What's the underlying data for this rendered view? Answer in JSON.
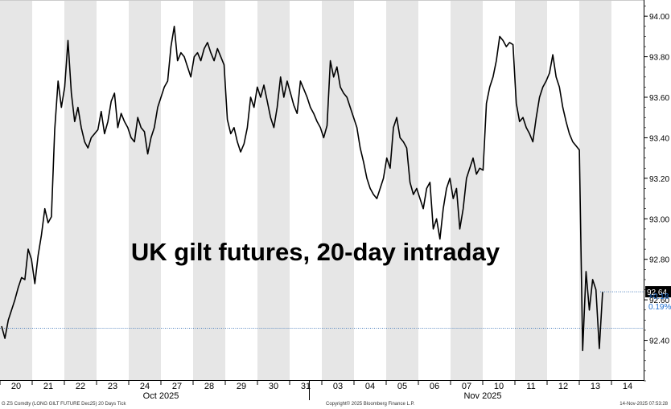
{
  "chart_data": {
    "type": "line",
    "title": "UK gilt futures, 20-day intraday",
    "series": [
      {
        "values": [
          92.47,
          92.41,
          92.5,
          92.55,
          92.6,
          92.66,
          92.71,
          92.7,
          92.85,
          92.8,
          92.68,
          92.82,
          92.92,
          93.05,
          92.98,
          93.01,
          93.44,
          93.68,
          93.55,
          93.65,
          93.88,
          93.62,
          93.48,
          93.55,
          93.45,
          93.38,
          93.35,
          93.4,
          93.42,
          93.44,
          93.53,
          93.42,
          93.48,
          93.58,
          93.62,
          93.45,
          93.52,
          93.48,
          93.45,
          93.4,
          93.38,
          93.5,
          93.45,
          93.43,
          93.32,
          93.4,
          93.45,
          93.55,
          93.6,
          93.65,
          93.68,
          93.85,
          93.95,
          93.78,
          93.82,
          93.8,
          93.75,
          93.7,
          93.8,
          93.82,
          93.78,
          93.84,
          93.87,
          93.82,
          93.78,
          93.84,
          93.8,
          93.76,
          93.49,
          93.42,
          93.45,
          93.38,
          93.33,
          93.37,
          93.45,
          93.6,
          93.55,
          93.65,
          93.6,
          93.66,
          93.58,
          93.5,
          93.45,
          93.55,
          93.7,
          93.6,
          93.68,
          93.62,
          93.56,
          93.52,
          93.68,
          93.64,
          93.6,
          93.55,
          93.52,
          93.48,
          93.45,
          93.4,
          93.46,
          93.78,
          93.7,
          93.75,
          93.65,
          93.62,
          93.6,
          93.55,
          93.5,
          93.45,
          93.35,
          93.28,
          93.2,
          93.15,
          93.12,
          93.1,
          93.15,
          93.2,
          93.3,
          93.25,
          93.45,
          93.5,
          93.4,
          93.38,
          93.35,
          93.18,
          93.12,
          93.15,
          93.1,
          93.05,
          93.15,
          93.18,
          92.95,
          93.0,
          92.9,
          93.05,
          93.15,
          93.2,
          93.1,
          93.15,
          92.95,
          93.05,
          93.2,
          93.25,
          93.3,
          93.22,
          93.25,
          93.24,
          93.57,
          93.65,
          93.7,
          93.78,
          93.9,
          93.88,
          93.85,
          93.87,
          93.86,
          93.57,
          93.48,
          93.5,
          93.45,
          93.42,
          93.38,
          93.5,
          93.6,
          93.65,
          93.68,
          93.72,
          93.81,
          93.7,
          93.65,
          93.55,
          93.48,
          93.42,
          93.38,
          93.36,
          93.34,
          92.35,
          92.74,
          92.55,
          92.7,
          92.65,
          92.36,
          92.64
        ]
      }
    ],
    "x_day_labels": [
      "20",
      "21",
      "22",
      "23",
      "24",
      "27",
      "28",
      "29",
      "30",
      "31",
      "03",
      "04",
      "05",
      "06",
      "07",
      "10",
      "11",
      "12",
      "13",
      "14"
    ],
    "x_month_labels": [
      "Oct 2025",
      "Nov 2025"
    ],
    "y_ticks": [
      "94.00",
      "93.80",
      "93.60",
      "93.40",
      "93.20",
      "93.00",
      "92.80",
      "92.60",
      "92.40"
    ],
    "ylim": [
      92.2,
      94.08
    ],
    "last_value_label": "92.64",
    "change_abs": "+0.18",
    "change_pct": "0.19%",
    "reference_level": 92.46,
    "grid": false,
    "shaded_alternate_days": true,
    "colors": {
      "line": "#000000",
      "shade": "#e6e6e6",
      "reference_line": "#4f81bd",
      "change_text": "#1f6fd0",
      "last_label_bg": "#000000",
      "last_label_text": "#ffffff"
    }
  },
  "footer": {
    "left": "G ZS Comdty (LONG GILT FUTURE  Dec25) 20 Days Tick",
    "center": "Copyright© 2025 Bloomberg Finance L.P.",
    "right": "14-Nov-2025 07:53:28"
  }
}
